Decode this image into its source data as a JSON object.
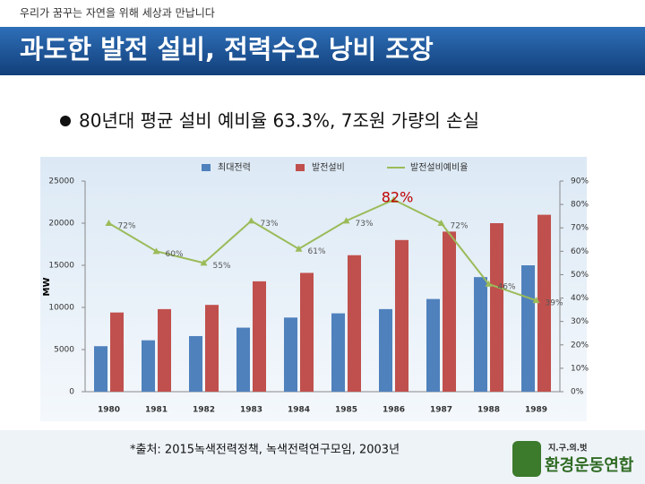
{
  "header": {
    "tagline": "우리가 꿈꾸는 자연을 위해 세상과 만납니다",
    "title": "과도한 발전 설비, 전력수요 낭비 조장"
  },
  "bullet": "80년대 평균 설비 예비율 63.3%, 7조원 가량의 손실",
  "chart_data": {
    "type": "bar",
    "y_label": "MW",
    "categories": [
      "1980",
      "1981",
      "1982",
      "1983",
      "1984",
      "1985",
      "1986",
      "1987",
      "1988",
      "1989"
    ],
    "series": [
      {
        "name": "최대전력",
        "color": "#4f81bd",
        "type": "bar",
        "values": [
          5400,
          6100,
          6600,
          7600,
          8800,
          9300,
          9800,
          11000,
          13600,
          15000
        ]
      },
      {
        "name": "발전설비",
        "color": "#c0504d",
        "type": "bar",
        "values": [
          9400,
          9800,
          10300,
          13100,
          14100,
          16200,
          18000,
          19000,
          20000,
          21000
        ]
      },
      {
        "name": "발전설비예비율",
        "color": "#9bbb59",
        "type": "line",
        "axis": "y2",
        "values": [
          72,
          60,
          55,
          73,
          61,
          73,
          82,
          72,
          46,
          39
        ],
        "value_labels": [
          "72%",
          "60%",
          "55%",
          "73%",
          "61%",
          "73%",
          "82%",
          "72%",
          "46%",
          "39%"
        ]
      }
    ],
    "ylim": [
      0,
      25000
    ],
    "yticks": [
      0,
      5000,
      10000,
      15000,
      20000,
      25000
    ],
    "y2lim": [
      0,
      90
    ],
    "y2ticks": [
      {
        "value": 0,
        "label": "0%"
      },
      {
        "value": 10,
        "label": "10%"
      },
      {
        "value": 20,
        "label": "20%"
      },
      {
        "value": 30,
        "label": "30%"
      },
      {
        "value": 40,
        "label": "40%"
      },
      {
        "value": 50,
        "label": "50%"
      },
      {
        "value": 60,
        "label": "60%"
      },
      {
        "value": 70,
        "label": "70%"
      },
      {
        "value": 80,
        "label": "80%"
      },
      {
        "value": 90,
        "label": "90%"
      }
    ]
  },
  "footer": {
    "source": "*출처: 2015녹색전력정책, 녹색전력연구모임, 2003년",
    "logo_top": "지.구.의.벗",
    "logo_main": "환경운동연합"
  }
}
